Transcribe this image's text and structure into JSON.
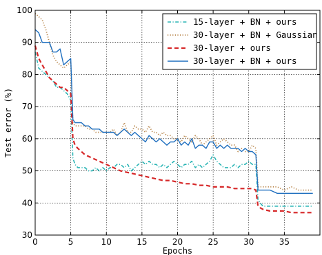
{
  "chart_data": {
    "type": "line",
    "xlabel": "Epochs",
    "ylabel": "Test error (%)",
    "xlim": [
      0,
      40
    ],
    "ylim": [
      30,
      100
    ],
    "xticks": [
      0,
      5,
      10,
      15,
      20,
      25,
      30,
      35
    ],
    "yticks": [
      30,
      40,
      50,
      60,
      70,
      80,
      90,
      100
    ],
    "grid": true,
    "legend_position": "top-right",
    "series": [
      {
        "name": "15-layer + BN + ours",
        "color": "#2bb5b5",
        "style": "dashdot",
        "x": [
          0,
          0.5,
          1,
          1.5,
          2,
          2.5,
          3,
          3.5,
          4,
          4.5,
          5,
          5.3,
          5.6,
          6,
          6.5,
          7,
          7.5,
          8,
          8.5,
          9,
          9.5,
          10,
          10.5,
          11,
          11.5,
          12,
          12.5,
          13,
          13.5,
          14,
          14.5,
          15,
          15.5,
          16,
          16.5,
          17,
          17.5,
          18,
          18.5,
          19,
          19.5,
          20,
          20.5,
          21,
          21.5,
          22,
          22.5,
          23,
          23.5,
          24,
          24.5,
          25,
          25.5,
          26,
          26.5,
          27,
          27.5,
          28,
          28.5,
          29,
          29.5,
          30,
          30.5,
          31,
          31.3,
          31.6,
          32,
          33,
          34,
          35,
          36,
          37,
          38,
          39
        ],
        "y": [
          87,
          82,
          81,
          80,
          79,
          78,
          76,
          76,
          75,
          74,
          72,
          54,
          52,
          51,
          51,
          51,
          50,
          50,
          51,
          50,
          51,
          50,
          51,
          51,
          52,
          52,
          51,
          52,
          50,
          51,
          52,
          53,
          52,
          53,
          52,
          52,
          51,
          52,
          51,
          52,
          53,
          52,
          51,
          52,
          52,
          53,
          51,
          52,
          51,
          52,
          53,
          55,
          53,
          52,
          51,
          51,
          51,
          52,
          51,
          52,
          52,
          53,
          52,
          52,
          41,
          40,
          39,
          39,
          39,
          39,
          39,
          39,
          39,
          39
        ]
      },
      {
        "name": "30-layer + BN + Gaussian",
        "color": "#b8864b",
        "style": "dotted",
        "x": [
          0,
          0.5,
          1,
          1.5,
          2,
          2.5,
          3,
          3.5,
          4,
          4.5,
          5,
          5.3,
          5.6,
          6,
          6.5,
          7,
          7.5,
          8,
          8.5,
          9,
          9.5,
          10,
          10.5,
          11,
          11.5,
          12,
          12.5,
          13,
          13.5,
          14,
          14.5,
          15,
          15.5,
          16,
          16.5,
          17,
          17.5,
          18,
          18.5,
          19,
          19.5,
          20,
          20.5,
          21,
          21.5,
          22,
          22.5,
          23,
          23.5,
          24,
          24.5,
          25,
          25.5,
          26,
          26.5,
          27,
          27.5,
          28,
          28.5,
          29,
          29.5,
          30,
          30.5,
          31,
          31.3,
          31.6,
          32,
          33,
          34,
          35,
          36,
          37,
          38,
          39
        ],
        "y": [
          99,
          98,
          97,
          94,
          90,
          86,
          84,
          83,
          82,
          83,
          84,
          65,
          64,
          64,
          64,
          64,
          63,
          63,
          62,
          62,
          62,
          62,
          62,
          63,
          61,
          62,
          65,
          62,
          62,
          64,
          63,
          63,
          62,
          64,
          62,
          62,
          61,
          62,
          61,
          61,
          60,
          60,
          59,
          61,
          60,
          59,
          61,
          60,
          58,
          59,
          60,
          61,
          58,
          59,
          60,
          59,
          58,
          58,
          56,
          57,
          56,
          56,
          58,
          57,
          45,
          45,
          45,
          45,
          45,
          44,
          45,
          44,
          44,
          44
        ]
      },
      {
        "name": "30-layer + ours",
        "color": "#d62728",
        "style": "dashed",
        "x": [
          0,
          0.5,
          1,
          1.5,
          2,
          2.5,
          3,
          3.5,
          4,
          4.5,
          5,
          5.3,
          5.6,
          6,
          7,
          8,
          9,
          10,
          11,
          12,
          13,
          14,
          15,
          16,
          17,
          18,
          19,
          20,
          21,
          22,
          23,
          24,
          25,
          26,
          27,
          28,
          29,
          30,
          30.5,
          31,
          31.3,
          31.6,
          32,
          33,
          34,
          35,
          36,
          37,
          38,
          39
        ],
        "y": [
          89,
          85,
          83,
          81,
          79,
          78,
          77,
          76,
          76,
          75,
          74,
          60,
          58,
          57,
          55,
          54,
          53,
          52,
          51,
          50,
          49.5,
          49,
          48.5,
          48,
          47.5,
          47,
          47,
          46.5,
          46,
          46,
          45.5,
          45.5,
          45,
          45,
          45,
          44.5,
          44.5,
          44.5,
          44.5,
          44,
          39,
          38.5,
          38,
          37.5,
          37.5,
          37.5,
          37,
          37,
          37,
          37
        ]
      },
      {
        "name": "30-layer + BN + ours",
        "color": "#1f6fbf",
        "style": "solid",
        "x": [
          0,
          0.5,
          1,
          1.5,
          2,
          2.5,
          3,
          3.5,
          4,
          4.5,
          5,
          5.3,
          5.6,
          6,
          6.5,
          7,
          7.5,
          8,
          8.5,
          9,
          9.5,
          10,
          10.5,
          11,
          11.5,
          12,
          12.5,
          13,
          13.5,
          14,
          14.5,
          15,
          15.5,
          16,
          16.5,
          17,
          17.5,
          18,
          18.5,
          19,
          19.5,
          20,
          20.5,
          21,
          21.5,
          22,
          22.5,
          23,
          23.5,
          24,
          24.5,
          25,
          25.5,
          26,
          26.5,
          27,
          27.5,
          28,
          28.5,
          29,
          29.5,
          30,
          30.5,
          31,
          31.3,
          31.6,
          32,
          33,
          34,
          35,
          36,
          37,
          38,
          39
        ],
        "y": [
          94,
          93,
          90,
          90,
          90,
          87,
          87,
          88,
          83,
          84,
          85,
          66,
          65,
          65,
          65,
          64,
          64,
          63,
          63,
          63,
          62,
          62,
          62,
          62,
          61,
          62,
          63,
          62,
          61,
          62,
          61,
          60,
          59,
          61,
          60,
          59,
          60,
          59,
          58,
          59,
          59,
          60,
          58,
          59,
          58,
          60,
          57,
          58,
          58,
          57,
          59,
          59,
          57,
          58,
          57,
          58,
          57,
          57,
          57,
          56,
          57,
          56,
          56,
          55,
          44,
          44,
          44,
          44,
          43,
          43,
          43,
          43,
          43,
          43
        ]
      }
    ]
  }
}
